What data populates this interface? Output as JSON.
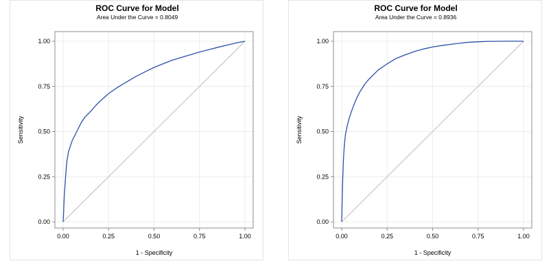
{
  "colors": {
    "curve": "#2a4fa8",
    "diagonal": "#bcbcbc",
    "grid": "#ececec",
    "axis": "#8c8c8c"
  },
  "chart_data": [
    {
      "type": "line",
      "title": "ROC Curve for Model",
      "subtitle": "Area Under the Curve = 0.8049",
      "xlabel": "1 - Specificity",
      "ylabel": "Sensitivity",
      "xlim": [
        0,
        1
      ],
      "ylim": [
        0,
        1
      ],
      "x_ticks": [
        "0.00",
        "0.25",
        "0.50",
        "0.75",
        "1.00"
      ],
      "y_ticks": [
        "0.00",
        "0.25",
        "0.50",
        "0.75",
        "1.00"
      ],
      "grid": true,
      "series": [
        {
          "x": [
            0,
            0.003,
            0.006,
            0.01,
            0.015,
            0.02,
            0.03,
            0.04,
            0.05,
            0.06,
            0.08,
            0.1,
            0.12,
            0.15,
            0.18,
            0.2,
            0.25,
            0.3,
            0.35,
            0.4,
            0.45,
            0.5,
            0.55,
            0.6,
            0.65,
            0.7,
            0.75,
            0.8,
            0.85,
            0.9,
            0.95,
            1.0
          ],
          "y": [
            0,
            0.06,
            0.14,
            0.2,
            0.27,
            0.33,
            0.39,
            0.42,
            0.45,
            0.47,
            0.51,
            0.55,
            0.58,
            0.61,
            0.645,
            0.665,
            0.71,
            0.745,
            0.775,
            0.805,
            0.83,
            0.855,
            0.875,
            0.895,
            0.91,
            0.925,
            0.94,
            0.953,
            0.966,
            0.978,
            0.99,
            1.0
          ]
        },
        {
          "x": [
            0,
            1
          ],
          "y": [
            0,
            1
          ]
        }
      ]
    },
    {
      "type": "line",
      "title": "ROC Curve for Model",
      "subtitle": "Area Under the Curve = 0.8936",
      "xlabel": "1 - Specificity",
      "ylabel": "Sensitivity",
      "xlim": [
        0,
        1
      ],
      "ylim": [
        0,
        1
      ],
      "x_ticks": [
        "0.00",
        "0.25",
        "0.50",
        "0.75",
        "1.00"
      ],
      "y_ticks": [
        "0.00",
        "0.25",
        "0.50",
        "0.75",
        "1.00"
      ],
      "grid": true,
      "series": [
        {
          "x": [
            0,
            0.002,
            0.005,
            0.008,
            0.012,
            0.016,
            0.02,
            0.03,
            0.04,
            0.05,
            0.06,
            0.08,
            0.1,
            0.125,
            0.15,
            0.2,
            0.25,
            0.3,
            0.35,
            0.4,
            0.45,
            0.5,
            0.55,
            0.6,
            0.65,
            0.7,
            0.75,
            0.8,
            0.9,
            1.0
          ],
          "y": [
            0,
            0.1,
            0.22,
            0.31,
            0.39,
            0.44,
            0.48,
            0.53,
            0.57,
            0.6,
            0.63,
            0.68,
            0.72,
            0.76,
            0.79,
            0.84,
            0.875,
            0.905,
            0.925,
            0.943,
            0.957,
            0.968,
            0.976,
            0.983,
            0.989,
            0.994,
            0.997,
            0.999,
            1.0,
            1.0
          ]
        },
        {
          "x": [
            0,
            1
          ],
          "y": [
            0,
            1
          ]
        }
      ]
    }
  ]
}
